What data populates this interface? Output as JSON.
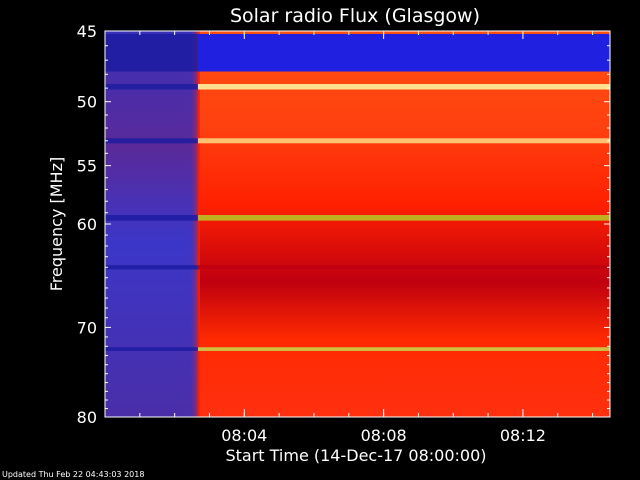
{
  "chart_data": {
    "type": "heatmap",
    "title": "Solar radio Flux (Glasgow)",
    "xlabel": "Start Time (14-Dec-17 08:00:00)",
    "ylabel": "Frequency [MHz]",
    "x_ticks": [
      "08:04",
      "08:08",
      "08:12"
    ],
    "y_ticks": [
      "45",
      "50",
      "55",
      "60",
      "70",
      "80"
    ],
    "ylim": [
      45,
      80
    ],
    "xlim": [
      "08:00:00",
      "08:14:30"
    ],
    "burst_onset_time": "08:02:40",
    "pre_onset": {
      "range_mhz": [
        45,
        80
      ],
      "level": "low",
      "colors": [
        "#0a0a60",
        "#3030c0",
        "#5038b0"
      ]
    },
    "post_onset_background": {
      "level": "high",
      "colors": [
        "#ff2000",
        "#e01010",
        "#ff6020"
      ]
    },
    "bands": [
      {
        "freq_mhz": [
          45.2,
          47.8
        ],
        "post_color": "#2020e0",
        "note": "low-intensity band"
      },
      {
        "freq_mhz": [
          48.7,
          49.1
        ],
        "post_color": "#ffe090",
        "note": "bright narrow band"
      },
      {
        "freq_mhz": [
          52.8,
          53.2
        ],
        "post_color": "#ffc070",
        "note": "bright band"
      },
      {
        "freq_mhz": [
          59.2,
          59.7
        ],
        "post_color": "#c0b020",
        "note": "bright band"
      },
      {
        "freq_mhz": [
          63.8,
          64.2
        ],
        "post_color": "#c00010",
        "note": "dark band"
      },
      {
        "freq_mhz": [
          72.1,
          72.5
        ],
        "post_color": "#d0c040",
        "note": "bright band"
      }
    ],
    "colors": {
      "axis": "#ffffff",
      "background": "#000000"
    }
  },
  "footer": {
    "updated": "Updated Thu Feb 22 04:43:03 2018"
  }
}
